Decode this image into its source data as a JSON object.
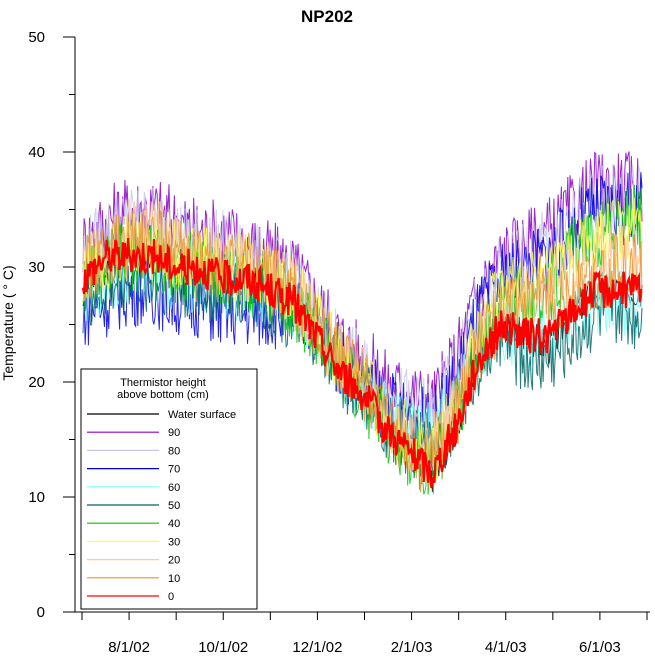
{
  "chart_data": {
    "type": "line",
    "title": "NP202",
    "xlabel": "",
    "ylabel": "Temperature ( ° C)",
    "ylim": [
      0,
      50
    ],
    "yticks": [
      "0",
      "10",
      "20",
      "30",
      "40",
      "50"
    ],
    "x_tick_labels": [
      "8/1/02",
      "10/1/02",
      "12/1/02",
      "2/1/03",
      "4/1/03",
      "6/1/03"
    ],
    "legend_title": [
      "Thermistor height",
      "above bottom (cm)"
    ],
    "legend_position": "bottom-left",
    "grid": false,
    "x": [
      "6/15/02",
      "7/1/02",
      "7/15/02",
      "8/1/02",
      "8/15/02",
      "9/1/02",
      "9/15/02",
      "10/1/02",
      "10/15/02",
      "11/1/02",
      "11/15/02",
      "12/1/02",
      "12/15/02",
      "1/1/03",
      "1/15/03",
      "2/1/03",
      "2/15/03",
      "3/1/03",
      "3/15/03",
      "4/1/03",
      "4/15/03",
      "5/1/03",
      "5/15/03",
      "6/1/03",
      "6/15/03"
    ],
    "series": [
      {
        "name": "Water surface",
        "color": "#000000",
        "values": [
          29,
          30,
          31,
          31,
          30,
          30,
          29,
          29,
          28,
          27,
          24,
          21,
          19,
          16,
          14,
          12,
          16,
          22,
          25,
          24,
          23,
          26,
          28,
          28,
          28
        ]
      },
      {
        "name": "90",
        "color": "#8a00c8",
        "values": [
          32,
          34,
          35,
          35,
          34,
          33,
          33,
          32,
          31,
          30,
          27,
          24,
          22,
          20,
          19,
          18,
          22,
          28,
          31,
          32,
          33,
          35,
          37,
          37,
          37
        ]
      },
      {
        "name": "80",
        "color": "#c8c8e6",
        "values": [
          31,
          33,
          34,
          34,
          33,
          32,
          32,
          31,
          30,
          29,
          26,
          23,
          21,
          19,
          18,
          17,
          21,
          27,
          30,
          31,
          32,
          34,
          36,
          36,
          36
        ]
      },
      {
        "name": "70",
        "color": "#0000e6",
        "values": [
          26,
          27,
          28,
          28,
          27,
          27,
          26,
          26,
          26,
          26,
          25,
          22,
          20,
          18,
          17,
          16,
          20,
          26,
          29,
          30,
          31,
          33,
          35,
          35,
          35
        ]
      },
      {
        "name": "60",
        "color": "#7fffff",
        "values": [
          28,
          29,
          30,
          30,
          29,
          29,
          28,
          28,
          28,
          27,
          25,
          22,
          19,
          17,
          16,
          15,
          18,
          23,
          25,
          24,
          24,
          26,
          27,
          27,
          27
        ]
      },
      {
        "name": "50",
        "color": "#006464",
        "values": [
          27,
          28,
          29,
          29,
          29,
          28,
          28,
          28,
          27,
          26,
          24,
          21,
          19,
          16,
          15,
          14,
          17,
          22,
          24,
          22,
          22,
          24,
          26,
          26,
          26
        ]
      },
      {
        "name": "40",
        "color": "#00c800",
        "values": [
          29,
          30,
          31,
          31,
          30,
          30,
          29,
          29,
          28,
          27,
          24,
          21,
          19,
          16,
          14,
          13,
          17,
          23,
          27,
          27,
          28,
          31,
          33,
          34,
          34
        ]
      },
      {
        "name": "30",
        "color": "#ffff50",
        "values": [
          30,
          31,
          32,
          32,
          31,
          31,
          30,
          30,
          29,
          28,
          25,
          22,
          20,
          17,
          15,
          14,
          18,
          24,
          28,
          28,
          29,
          31,
          32,
          33,
          33
        ]
      },
      {
        "name": "20",
        "color": "#ffc896",
        "values": [
          30,
          32,
          33,
          33,
          32,
          31,
          30,
          30,
          29,
          28,
          25,
          22,
          20,
          17,
          15,
          14,
          18,
          24,
          27,
          27,
          28,
          30,
          31,
          31,
          31
        ]
      },
      {
        "name": "10",
        "color": "#e69632",
        "values": [
          30,
          31,
          32,
          32,
          31,
          30,
          30,
          30,
          29,
          28,
          25,
          22,
          20,
          16,
          14,
          13,
          17,
          23,
          26,
          26,
          27,
          28,
          29,
          30,
          30
        ]
      },
      {
        "name": "0",
        "color": "#ff0000",
        "values": [
          29,
          31,
          31,
          31,
          30,
          30,
          29,
          29,
          28,
          27,
          24,
          21,
          19,
          16,
          14,
          12,
          16,
          22,
          25,
          24,
          24,
          26,
          28,
          28,
          28
        ]
      }
    ]
  }
}
